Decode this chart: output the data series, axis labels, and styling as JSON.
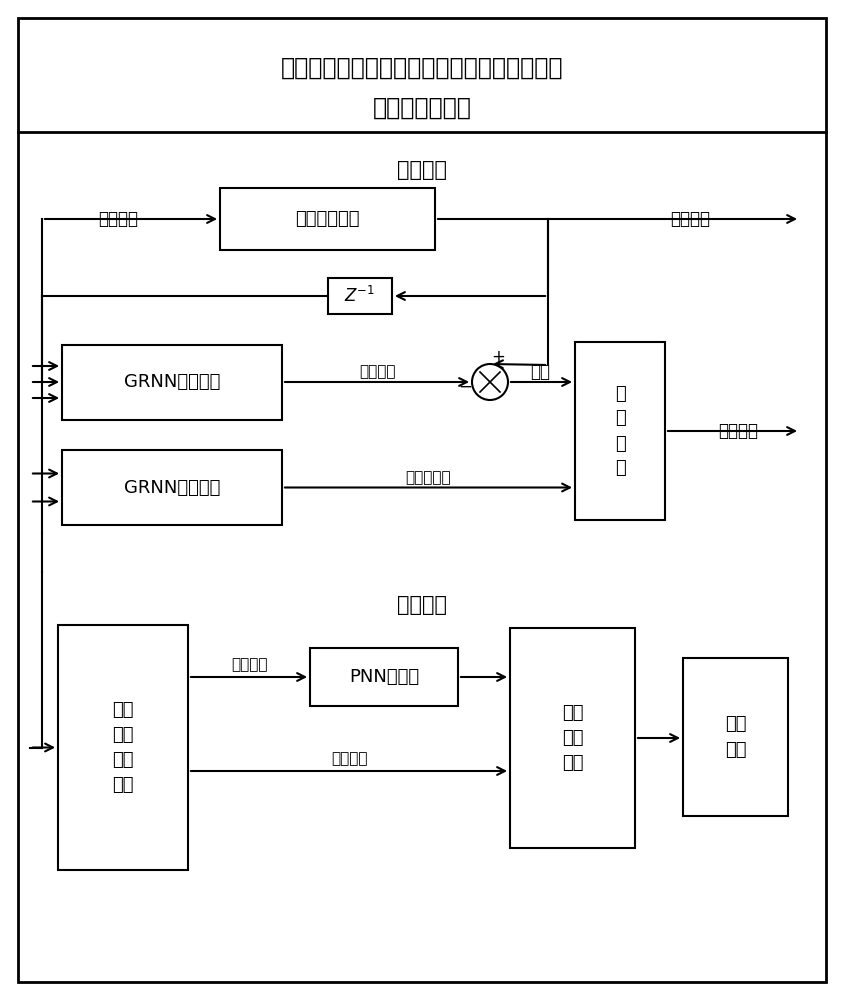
{
  "title_line1": "基于观测器和残差分析的超外差接收机自适应",
  "title_line2": "故障检测与诊断",
  "section1_label": "故障检测",
  "section2_label": "故障诊断",
  "grnn1_label": "GRNN神经网络",
  "grnn2_label": "GRNN神经网络",
  "receiver_label": "超外差接收机",
  "z_label": "Z⁻¹",
  "circle_sym": "⊗",
  "judge_label": "判\n别\n模\n块",
  "detect_result": "检测结果",
  "sys_input": "系统输入",
  "sys_output": "系统输出",
  "est_output": "估计输出",
  "residual": "残差",
  "adaptive_threshold": "自适应阈值",
  "time_freq_label": "时域\n频域\n特征\n提取",
  "pnn_label": "PNN分类器",
  "trained_label": "已训\n练分\n类器",
  "diag_result": "诊断\n结果",
  "train_data": "训练数据",
  "test_data": "测试数据",
  "fig_width": 8.44,
  "fig_height": 10.0,
  "bg_color": "#ffffff"
}
